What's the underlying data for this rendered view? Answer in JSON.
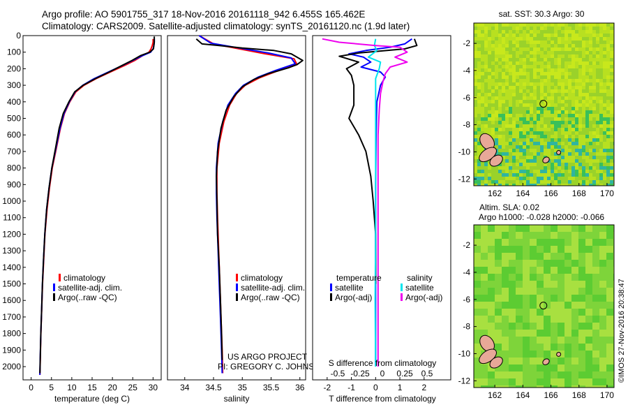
{
  "header": {
    "line1": "Argo profile: AO 5901755_317 18-Nov-2016 20161118_942 6.455S 165.462E",
    "line2": "Climatology: CARS2009. Satellite-adjusted climatology: synTS_20161120.nc (1.9d later)"
  },
  "colors": {
    "climatology": "#ff0000",
    "satellite": "#0000ff",
    "argo": "#000000",
    "satellite_salinity": "#00e5ee",
    "argo_salinity": "#ee00ee",
    "land": "#e8a898"
  },
  "chart_data": [
    {
      "id": "temperature",
      "type": "line",
      "xlabel": "temperature (deg C)",
      "ylabel": "",
      "xlim": [
        -2,
        32
      ],
      "ylim": [
        2080,
        0
      ],
      "xticks": [
        0,
        5,
        10,
        15,
        20,
        25,
        30
      ],
      "yticks": [
        0,
        100,
        200,
        300,
        400,
        500,
        600,
        700,
        800,
        900,
        1000,
        1100,
        1200,
        1300,
        1400,
        1500,
        1600,
        1700,
        1800,
        1900,
        2000
      ],
      "legend": [
        "climatology",
        "satellite-adj. clim.",
        "Argo(..raw -QC)"
      ],
      "legend_placement": "lower-middle",
      "series": [
        {
          "name": "climatology",
          "color": "#ff0000",
          "points": [
            [
              30,
              20
            ],
            [
              30,
              40
            ],
            [
              29.8,
              60
            ],
            [
              29.5,
              80
            ],
            [
              29,
              100
            ],
            [
              27.5,
              120
            ],
            [
              25.5,
              150
            ],
            [
              23,
              180
            ],
            [
              19.5,
              220
            ],
            [
              16,
              260
            ],
            [
              13,
              300
            ],
            [
              11,
              340
            ],
            [
              9.5,
              400
            ],
            [
              8.2,
              470
            ],
            [
              7.2,
              560
            ],
            [
              6.2,
              680
            ],
            [
              5.2,
              800
            ],
            [
              4.5,
              920
            ],
            [
              3.9,
              1050
            ],
            [
              3.4,
              1200
            ],
            [
              3.1,
              1350
            ],
            [
              2.8,
              1500
            ],
            [
              2.6,
              1650
            ],
            [
              2.4,
              1800
            ],
            [
              2.25,
              1950
            ],
            [
              2.15,
              2050
            ]
          ]
        },
        {
          "name": "satellite-adj. clim.",
          "color": "#0000ff",
          "points": [
            [
              30.3,
              20
            ],
            [
              30.3,
              40
            ],
            [
              30.2,
              60
            ],
            [
              30,
              80
            ],
            [
              29.4,
              100
            ],
            [
              27.5,
              120
            ],
            [
              25,
              150
            ],
            [
              22.5,
              180
            ],
            [
              19,
              220
            ],
            [
              15.5,
              260
            ],
            [
              12.7,
              300
            ],
            [
              10.8,
              340
            ],
            [
              9.4,
              400
            ],
            [
              8.1,
              470
            ],
            [
              7.1,
              560
            ],
            [
              6.1,
              680
            ],
            [
              5.1,
              800
            ],
            [
              4.4,
              920
            ],
            [
              3.8,
              1050
            ],
            [
              3.35,
              1200
            ],
            [
              3.05,
              1350
            ],
            [
              2.78,
              1500
            ],
            [
              2.58,
              1650
            ],
            [
              2.38,
              1800
            ],
            [
              2.23,
              1950
            ],
            [
              2.14,
              2050
            ]
          ]
        },
        {
          "name": "Argo(..raw -QC)",
          "color": "#000000",
          "points": [
            [
              30.3,
              5
            ],
            [
              30.3,
              40
            ],
            [
              30.2,
              60
            ],
            [
              30.1,
              80
            ],
            [
              29.2,
              100
            ],
            [
              27,
              120
            ],
            [
              24.8,
              150
            ],
            [
              22.4,
              180
            ],
            [
              19.2,
              220
            ],
            [
              15.8,
              260
            ],
            [
              12.8,
              300
            ],
            [
              10.7,
              340
            ],
            [
              9.3,
              400
            ],
            [
              7.9,
              470
            ],
            [
              6.9,
              560
            ],
            [
              6,
              680
            ],
            [
              5.1,
              800
            ],
            [
              4.4,
              920
            ],
            [
              3.8,
              1050
            ],
            [
              3.35,
              1200
            ],
            [
              3.05,
              1350
            ],
            [
              2.78,
              1500
            ],
            [
              2.58,
              1650
            ],
            [
              2.38,
              1800
            ],
            [
              2.24,
              1950
            ],
            [
              2.15,
              2040
            ]
          ]
        }
      ]
    },
    {
      "id": "salinity",
      "type": "line",
      "xlabel": "salinity",
      "ylabel": "",
      "xlim": [
        33.7,
        36.1
      ],
      "xticks": [
        34,
        34.5,
        35,
        35.5,
        36
      ],
      "xticklabels": [
        "34",
        "34.5",
        "35",
        "35.5",
        "36"
      ],
      "legend": [
        "climatology",
        "satellite-adj. clim.",
        "Argo(..raw -QC)"
      ],
      "legend_placement": "lower-middle",
      "annotation": [
        "US ARGO PROJECT",
        "PI: GREGORY C. JOHNSON"
      ],
      "series": [
        {
          "name": "climatology",
          "color": "#ff0000",
          "points": [
            [
              34.25,
              0
            ],
            [
              34.5,
              50
            ],
            [
              34.95,
              80
            ],
            [
              35.4,
              110
            ],
            [
              35.9,
              140
            ],
            [
              35.95,
              175
            ],
            [
              35.6,
              215
            ],
            [
              35.3,
              255
            ],
            [
              35.05,
              300
            ],
            [
              34.9,
              350
            ],
            [
              34.78,
              420
            ],
            [
              34.68,
              520
            ],
            [
              34.6,
              650
            ],
            [
              34.56,
              800
            ],
            [
              34.56,
              950
            ],
            [
              34.57,
              1100
            ],
            [
              34.59,
              1300
            ],
            [
              34.61,
              1500
            ],
            [
              34.63,
              1700
            ],
            [
              34.65,
              1900
            ],
            [
              34.66,
              2040
            ]
          ]
        },
        {
          "name": "satellite-adj. clim.",
          "color": "#0000ff",
          "points": [
            [
              34.25,
              0
            ],
            [
              34.45,
              45
            ],
            [
              34.95,
              75
            ],
            [
              35.45,
              105
            ],
            [
              35.85,
              135
            ],
            [
              35.92,
              170
            ],
            [
              35.58,
              210
            ],
            [
              35.28,
              250
            ],
            [
              35.02,
              300
            ],
            [
              34.88,
              350
            ],
            [
              34.75,
              420
            ],
            [
              34.66,
              520
            ],
            [
              34.58,
              650
            ],
            [
              34.55,
              800
            ],
            [
              34.55,
              950
            ],
            [
              34.56,
              1100
            ],
            [
              34.58,
              1300
            ],
            [
              34.6,
              1500
            ],
            [
              34.62,
              1700
            ],
            [
              34.64,
              1900
            ],
            [
              34.65,
              2040
            ]
          ]
        },
        {
          "name": "Argo(..raw -QC)",
          "color": "#000000",
          "points": [
            [
              34.2,
              20
            ],
            [
              34.3,
              50
            ],
            [
              34.6,
              60
            ],
            [
              35.0,
              75
            ],
            [
              35.55,
              90
            ],
            [
              35.85,
              110
            ],
            [
              36.05,
              150
            ],
            [
              35.95,
              175
            ],
            [
              35.8,
              195
            ],
            [
              35.45,
              230
            ],
            [
              35.2,
              265
            ],
            [
              35.0,
              310
            ],
            [
              34.85,
              370
            ],
            [
              34.72,
              450
            ],
            [
              34.63,
              560
            ],
            [
              34.57,
              700
            ],
            [
              34.55,
              850
            ],
            [
              34.56,
              1000
            ],
            [
              34.57,
              1200
            ],
            [
              34.6,
              1400
            ],
            [
              34.62,
              1600
            ],
            [
              34.64,
              1800
            ],
            [
              34.65,
              1960
            ]
          ]
        }
      ]
    },
    {
      "id": "difference",
      "type": "line",
      "xlabel": "T difference from climatology",
      "xlabel2": "S difference from climatology",
      "xlim": [
        -2.6,
        3.1
      ],
      "xticks": [
        -2,
        -1,
        0,
        1,
        2
      ],
      "xticks2": [
        -0.5,
        -0.25,
        0,
        0.25,
        0.5
      ],
      "xticklabels2": [
        "-0.5",
        "-0.25",
        "0",
        "0.25",
        "0.5"
      ],
      "legend_titles": [
        "temperature",
        "salinity"
      ],
      "legend": [
        "satellite",
        "Argo(-adj)",
        "satellite",
        "Argo(-adj)"
      ],
      "legend_placement": "lower-middle",
      "series": [
        {
          "name": "satellite",
          "color": "#0000ff",
          "points": [
            [
              1.5,
              20
            ],
            [
              1.2,
              50
            ],
            [
              0.6,
              70
            ],
            [
              -0.4,
              90
            ],
            [
              -1.1,
              110
            ],
            [
              -0.5,
              130
            ],
            [
              -0.2,
              160
            ],
            [
              -0.6,
              190
            ],
            [
              0.2,
              220
            ],
            [
              0.4,
              250
            ],
            [
              0.2,
              300
            ],
            [
              0.05,
              400
            ],
            [
              0.02,
              600
            ],
            [
              0.0,
              900
            ],
            [
              0.0,
              1400
            ],
            [
              0.0,
              2000
            ]
          ]
        },
        {
          "name": "Argo(-adj)",
          "color": "#000000",
          "points": [
            [
              1.6,
              20
            ],
            [
              1.7,
              60
            ],
            [
              1.2,
              80
            ],
            [
              -0.7,
              105
            ],
            [
              -1.5,
              125
            ],
            [
              -0.7,
              160
            ],
            [
              -1.2,
              200
            ],
            [
              -1.0,
              240
            ],
            [
              -0.9,
              300
            ],
            [
              -0.9,
              420
            ],
            [
              -1.1,
              500
            ],
            [
              -0.7,
              600
            ],
            [
              -0.4,
              700
            ],
            [
              -0.2,
              850
            ],
            [
              -0.1,
              1000
            ],
            [
              0.0,
              1200
            ],
            [
              0.0,
              1500
            ]
          ]
        },
        {
          "name": "satellite",
          "color": "#00e5ee",
          "points": [
            [
              0.0,
              20
            ],
            [
              -0.05,
              60
            ],
            [
              0.05,
              90
            ],
            [
              -0.3,
              130
            ],
            [
              0.2,
              160
            ],
            [
              0.15,
              200
            ],
            [
              0.0,
              260
            ],
            [
              0.0,
              350
            ],
            [
              0.0,
              500
            ],
            [
              0.0,
              800
            ],
            [
              0.0,
              1200
            ],
            [
              -0.02,
              1600
            ],
            [
              0.0,
              2000
            ]
          ]
        },
        {
          "name": "Argo(-adj)",
          "color": "#ee00ee",
          "points": [
            [
              -2.2,
              20
            ],
            [
              -1.5,
              40
            ],
            [
              0.0,
              60
            ],
            [
              1.0,
              70
            ],
            [
              1.3,
              100
            ],
            [
              0.8,
              130
            ],
            [
              1.3,
              160
            ],
            [
              0.6,
              190
            ],
            [
              0.4,
              230
            ],
            [
              0.3,
              280
            ],
            [
              0.2,
              350
            ],
            [
              0.15,
              450
            ],
            [
              0.1,
              600
            ],
            [
              0.1,
              800
            ],
            [
              0.1,
              1000
            ],
            [
              0.1,
              1300
            ],
            [
              0.1,
              1600
            ],
            [
              0.1,
              2000
            ]
          ]
        }
      ]
    },
    {
      "id": "map_sst",
      "type": "heatmap",
      "title": "sat. SST: 30.3 Argo: 30",
      "xlim": [
        160.5,
        170.5
      ],
      "ylim": [
        -12.5,
        -0.5
      ],
      "xticks": [
        162,
        164,
        166,
        168,
        170
      ],
      "yticks": [
        -2,
        -4,
        -6,
        -8,
        -10,
        -12
      ],
      "marker": {
        "lon": 165.462,
        "lat": -6.455
      }
    },
    {
      "id": "map_sla",
      "type": "heatmap",
      "title": "Altim. SLA: 0.02",
      "subtitle": "Argo h1000: -0.028 h2000: -0.066",
      "xlim": [
        160.5,
        170.5
      ],
      "ylim": [
        -12.5,
        -0.5
      ],
      "xticks": [
        162,
        164,
        166,
        168,
        170
      ],
      "yticks": [
        -2,
        -4,
        -6,
        -8,
        -10,
        -12
      ],
      "marker": {
        "lon": 165.462,
        "lat": -6.455
      }
    }
  ],
  "footer": {
    "credit": "©IMOS 27-Nov-2016 20:38:47"
  }
}
